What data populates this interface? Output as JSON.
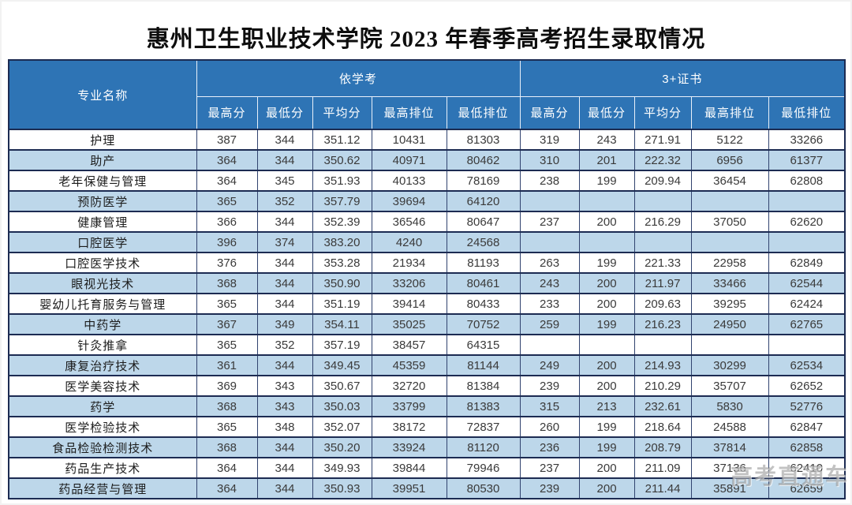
{
  "title": "惠州卫生职业技术学院 2023 年春季高考招生录取情况",
  "watermark": "高考直通车",
  "colors": {
    "header_bg": "#2e74b5",
    "header_text": "#ffffff",
    "stripe_row_bg": "#bdd7ea",
    "plain_row_bg": "#ffffff",
    "grid_border": "#1c2b52"
  },
  "table": {
    "major_header": "专业名称",
    "groups": [
      {
        "label": "依学考"
      },
      {
        "label": "3+证书"
      }
    ],
    "sub_headers": [
      "最高分",
      "最低分",
      "平均分",
      "最高排位",
      "最低排位"
    ],
    "rows": [
      {
        "major": "护理",
        "yixuekao": [
          "387",
          "344",
          "351.12",
          "10431",
          "81303"
        ],
        "zhengshu": [
          "319",
          "243",
          "271.91",
          "5122",
          "33266"
        ]
      },
      {
        "major": "助产",
        "yixuekao": [
          "364",
          "344",
          "350.62",
          "40971",
          "80462"
        ],
        "zhengshu": [
          "310",
          "201",
          "222.32",
          "6956",
          "61377"
        ]
      },
      {
        "major": "老年保健与管理",
        "yixuekao": [
          "364",
          "345",
          "351.93",
          "40133",
          "78169"
        ],
        "zhengshu": [
          "238",
          "199",
          "209.94",
          "36454",
          "62808"
        ]
      },
      {
        "major": "预防医学",
        "yixuekao": [
          "365",
          "352",
          "357.79",
          "39694",
          "64120"
        ],
        "zhengshu": [
          "",
          "",
          "",
          "",
          ""
        ]
      },
      {
        "major": "健康管理",
        "yixuekao": [
          "366",
          "344",
          "352.39",
          "36546",
          "80647"
        ],
        "zhengshu": [
          "237",
          "200",
          "216.29",
          "37050",
          "62620"
        ]
      },
      {
        "major": "口腔医学",
        "yixuekao": [
          "396",
          "374",
          "383.20",
          "4240",
          "24568"
        ],
        "zhengshu": [
          "",
          "",
          "",
          "",
          ""
        ]
      },
      {
        "major": "口腔医学技术",
        "yixuekao": [
          "376",
          "344",
          "353.28",
          "21934",
          "81193"
        ],
        "zhengshu": [
          "263",
          "199",
          "221.33",
          "22958",
          "62849"
        ]
      },
      {
        "major": "眼视光技术",
        "yixuekao": [
          "368",
          "344",
          "350.90",
          "33206",
          "80461"
        ],
        "zhengshu": [
          "243",
          "200",
          "211.97",
          "33466",
          "62544"
        ]
      },
      {
        "major": "婴幼儿托育服务与管理",
        "yixuekao": [
          "365",
          "344",
          "351.19",
          "39414",
          "80433"
        ],
        "zhengshu": [
          "233",
          "200",
          "209.63",
          "39295",
          "62424"
        ]
      },
      {
        "major": "中药学",
        "yixuekao": [
          "367",
          "349",
          "354.11",
          "35025",
          "70752"
        ],
        "zhengshu": [
          "259",
          "199",
          "216.23",
          "24950",
          "62765"
        ]
      },
      {
        "major": "针灸推拿",
        "yixuekao": [
          "365",
          "352",
          "357.19",
          "38457",
          "64315"
        ],
        "zhengshu": [
          "",
          "",
          "",
          "",
          ""
        ]
      },
      {
        "major": "康复治疗技术",
        "yixuekao": [
          "361",
          "344",
          "349.45",
          "45359",
          "81144"
        ],
        "zhengshu": [
          "249",
          "200",
          "214.93",
          "30299",
          "62534"
        ]
      },
      {
        "major": "医学美容技术",
        "yixuekao": [
          "369",
          "343",
          "350.67",
          "32720",
          "81384"
        ],
        "zhengshu": [
          "239",
          "200",
          "210.29",
          "35707",
          "62652"
        ]
      },
      {
        "major": "药学",
        "yixuekao": [
          "368",
          "343",
          "350.03",
          "33799",
          "81383"
        ],
        "zhengshu": [
          "315",
          "213",
          "232.61",
          "5830",
          "52776"
        ]
      },
      {
        "major": "医学检验技术",
        "yixuekao": [
          "365",
          "348",
          "352.07",
          "38172",
          "72837"
        ],
        "zhengshu": [
          "260",
          "199",
          "218.64",
          "24588",
          "62847"
        ]
      },
      {
        "major": "食品检验检测技术",
        "yixuekao": [
          "368",
          "344",
          "350.20",
          "33924",
          "81120"
        ],
        "zhengshu": [
          "236",
          "199",
          "208.79",
          "37814",
          "62858"
        ]
      },
      {
        "major": "药品生产技术",
        "yixuekao": [
          "364",
          "344",
          "349.93",
          "39844",
          "79946"
        ],
        "zhengshu": [
          "237",
          "200",
          "211.09",
          "37136",
          "62410"
        ]
      },
      {
        "major": "药品经营与管理",
        "yixuekao": [
          "364",
          "344",
          "350.93",
          "39951",
          "80530"
        ],
        "zhengshu": [
          "239",
          "200",
          "211.44",
          "35891",
          "62659"
        ]
      }
    ]
  }
}
